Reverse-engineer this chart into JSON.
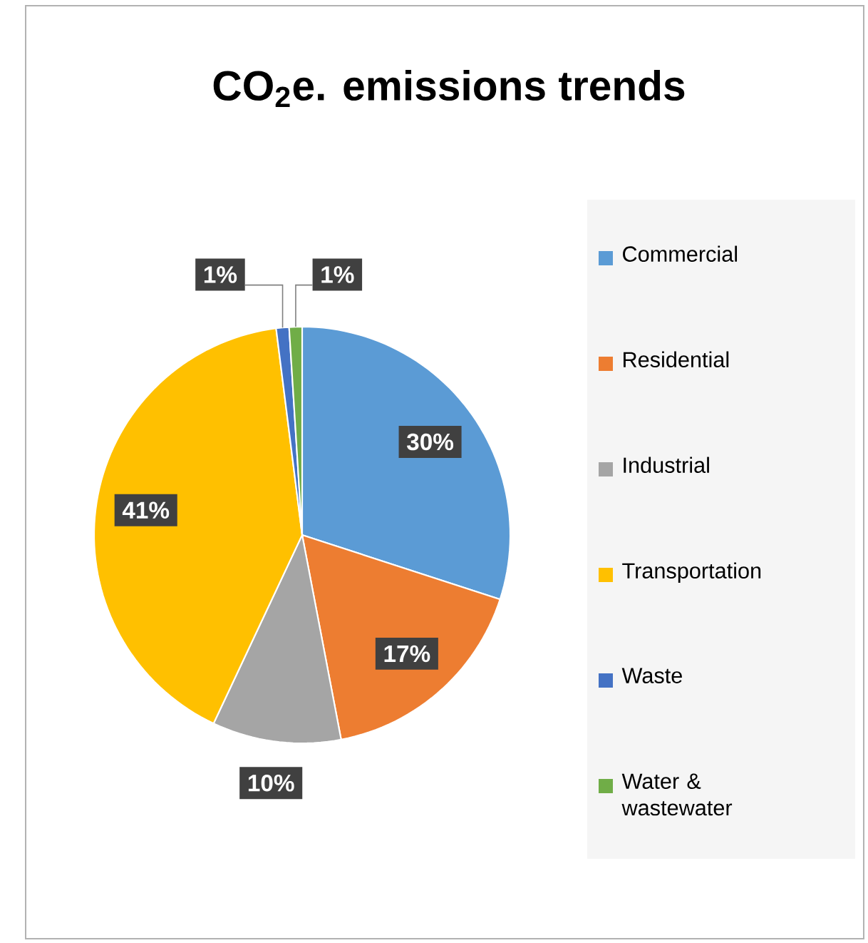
{
  "chart_data": {
    "type": "pie",
    "title": "CO$_{2}$e.  emissions trends",
    "categories": [
      "Commercial",
      "Residential",
      "Industrial",
      "Transportation",
      "Waste",
      "Water & wastewater"
    ],
    "values": [
      30,
      17,
      10,
      41,
      1,
      1
    ],
    "colors": [
      "#5b9bd5",
      "#ed7d31",
      "#a5a5a5",
      "#ffc000",
      "#4472c4",
      "#70ad47"
    ],
    "value_labels": [
      "30%",
      "17%",
      "10%",
      "41%",
      "1%",
      "1%"
    ],
    "legend": "right"
  }
}
